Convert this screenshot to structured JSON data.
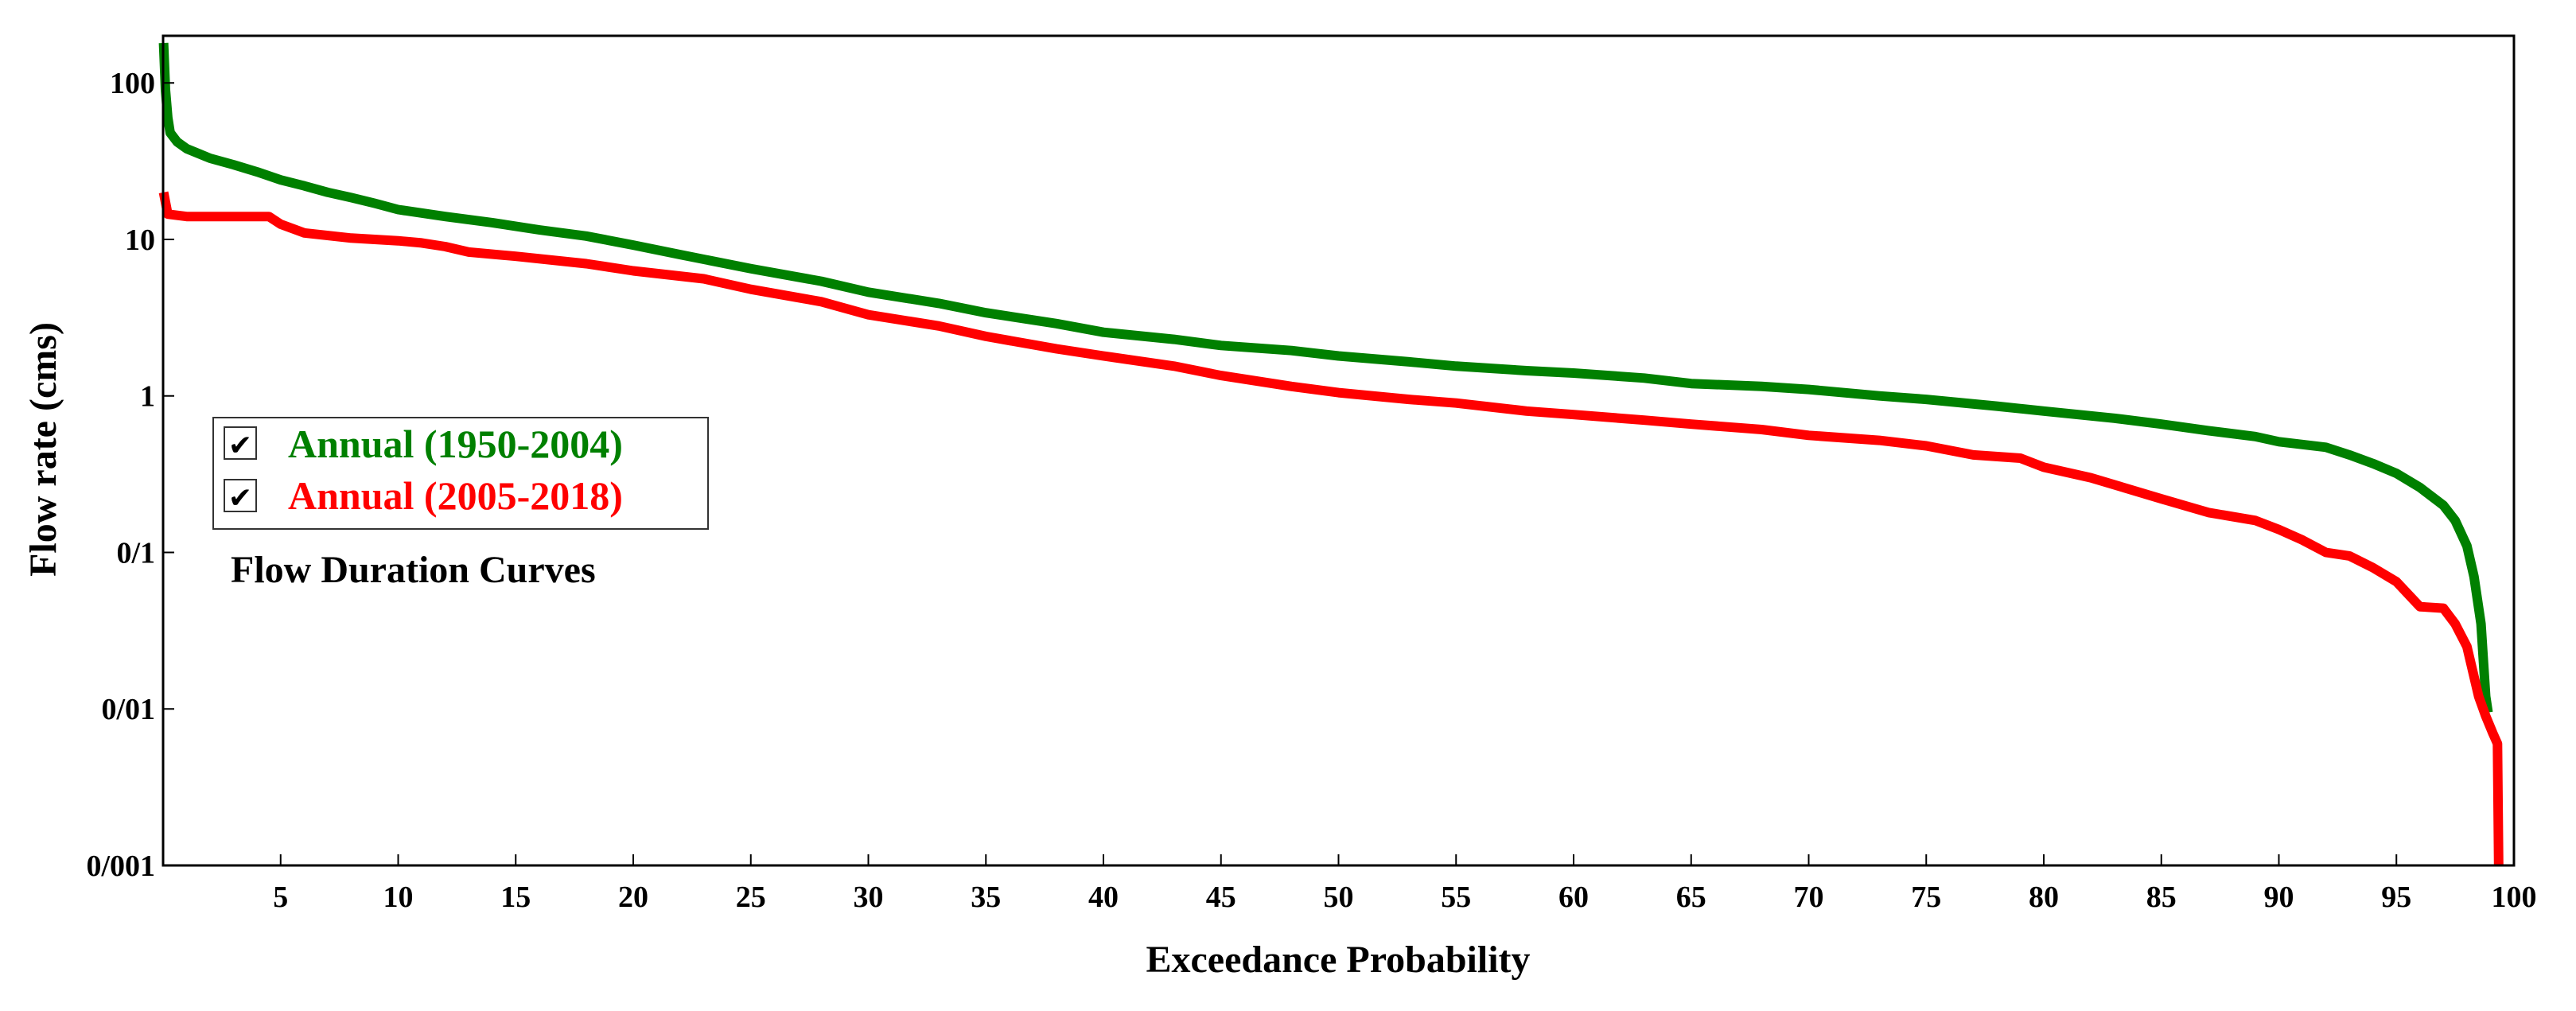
{
  "chart_data": {
    "type": "line",
    "title": "Flow Duration Curves",
    "xlabel": "Exceedance Probability",
    "ylabel": "Flow rate (cms)",
    "xlim": [
      0,
      100
    ],
    "ylim": [
      0.001,
      200
    ],
    "yscale": "log",
    "grid": false,
    "x_ticks": [
      5,
      10,
      15,
      20,
      25,
      30,
      35,
      40,
      45,
      50,
      55,
      60,
      65,
      70,
      75,
      80,
      85,
      90,
      95,
      100
    ],
    "x_tick_labels": [
      "5",
      "10",
      "15",
      "20",
      "25",
      "30",
      "35",
      "40",
      "45",
      "50",
      "55",
      "60",
      "65",
      "70",
      "75",
      "80",
      "85",
      "90",
      "95",
      "100"
    ],
    "y_ticks": [
      0.001,
      0.01,
      0.1,
      1,
      10,
      100
    ],
    "y_tick_labels": [
      "0/001",
      "0/01",
      "0/1",
      "1",
      "10",
      "100"
    ],
    "legend_position": "left",
    "series": [
      {
        "name": "Annual (1950-2004)",
        "color": "#008000",
        "checked": true,
        "points": [
          [
            0.02,
            180
          ],
          [
            0.1,
            90
          ],
          [
            0.2,
            60
          ],
          [
            0.3,
            48
          ],
          [
            0.6,
            42
          ],
          [
            1,
            38
          ],
          [
            2,
            33
          ],
          [
            3,
            30
          ],
          [
            4,
            27
          ],
          [
            5,
            24
          ],
          [
            6,
            22
          ],
          [
            7,
            20
          ],
          [
            8,
            18.5
          ],
          [
            9,
            17
          ],
          [
            10,
            15.5
          ],
          [
            12,
            14
          ],
          [
            14,
            12.8
          ],
          [
            16,
            11.5
          ],
          [
            18,
            10.5
          ],
          [
            20,
            9.2
          ],
          [
            22,
            8
          ],
          [
            25,
            6.5
          ],
          [
            28,
            5.4
          ],
          [
            30,
            4.6
          ],
          [
            33,
            3.9
          ],
          [
            35,
            3.4
          ],
          [
            38,
            2.9
          ],
          [
            40,
            2.55
          ],
          [
            43,
            2.3
          ],
          [
            45,
            2.1
          ],
          [
            48,
            1.95
          ],
          [
            50,
            1.8
          ],
          [
            53,
            1.65
          ],
          [
            55,
            1.55
          ],
          [
            58,
            1.45
          ],
          [
            60,
            1.4
          ],
          [
            63,
            1.3
          ],
          [
            65,
            1.2
          ],
          [
            68,
            1.15
          ],
          [
            70,
            1.1
          ],
          [
            73,
            1.0
          ],
          [
            75,
            0.95
          ],
          [
            78,
            0.86
          ],
          [
            80,
            0.8
          ],
          [
            83,
            0.72
          ],
          [
            85,
            0.66
          ],
          [
            87,
            0.6
          ],
          [
            89,
            0.55
          ],
          [
            90,
            0.51
          ],
          [
            92,
            0.47
          ],
          [
            93,
            0.42
          ],
          [
            94,
            0.37
          ],
          [
            95,
            0.32
          ],
          [
            96,
            0.26
          ],
          [
            97,
            0.2
          ],
          [
            97.5,
            0.16
          ],
          [
            98,
            0.11
          ],
          [
            98.3,
            0.07
          ],
          [
            98.6,
            0.035
          ],
          [
            98.8,
            0.012
          ],
          [
            98.9,
            0.0095
          ]
        ]
      },
      {
        "name": "Annual (2005-2018)",
        "color": "#ff0000",
        "checked": true,
        "points": [
          [
            0.02,
            20
          ],
          [
            0.2,
            14.5
          ],
          [
            1,
            14
          ],
          [
            3,
            14
          ],
          [
            4.5,
            14
          ],
          [
            5,
            12.5
          ],
          [
            6,
            11
          ],
          [
            8,
            10.2
          ],
          [
            10,
            9.8
          ],
          [
            11,
            9.5
          ],
          [
            12,
            9
          ],
          [
            13,
            8.3
          ],
          [
            15,
            7.8
          ],
          [
            18,
            7
          ],
          [
            20,
            6.3
          ],
          [
            23,
            5.6
          ],
          [
            25,
            4.8
          ],
          [
            28,
            4
          ],
          [
            30,
            3.3
          ],
          [
            33,
            2.8
          ],
          [
            35,
            2.4
          ],
          [
            38,
            2
          ],
          [
            40,
            1.8
          ],
          [
            43,
            1.55
          ],
          [
            45,
            1.35
          ],
          [
            48,
            1.15
          ],
          [
            50,
            1.05
          ],
          [
            53,
            0.95
          ],
          [
            55,
            0.9
          ],
          [
            58,
            0.8
          ],
          [
            60,
            0.76
          ],
          [
            63,
            0.7
          ],
          [
            65,
            0.66
          ],
          [
            68,
            0.61
          ],
          [
            70,
            0.56
          ],
          [
            73,
            0.52
          ],
          [
            75,
            0.48
          ],
          [
            77,
            0.42
          ],
          [
            79,
            0.4
          ],
          [
            80,
            0.35
          ],
          [
            82,
            0.3
          ],
          [
            85,
            0.22
          ],
          [
            87,
            0.18
          ],
          [
            89,
            0.16
          ],
          [
            90,
            0.14
          ],
          [
            91,
            0.12
          ],
          [
            92,
            0.1
          ],
          [
            93,
            0.095
          ],
          [
            94,
            0.08
          ],
          [
            95,
            0.065
          ],
          [
            96,
            0.045
          ],
          [
            97,
            0.044
          ],
          [
            97.5,
            0.035
          ],
          [
            98,
            0.025
          ],
          [
            98.5,
            0.012
          ],
          [
            98.8,
            0.009
          ],
          [
            99.1,
            0.007
          ],
          [
            99.3,
            0.006
          ],
          [
            99.35,
            0.001
          ]
        ]
      }
    ]
  }
}
